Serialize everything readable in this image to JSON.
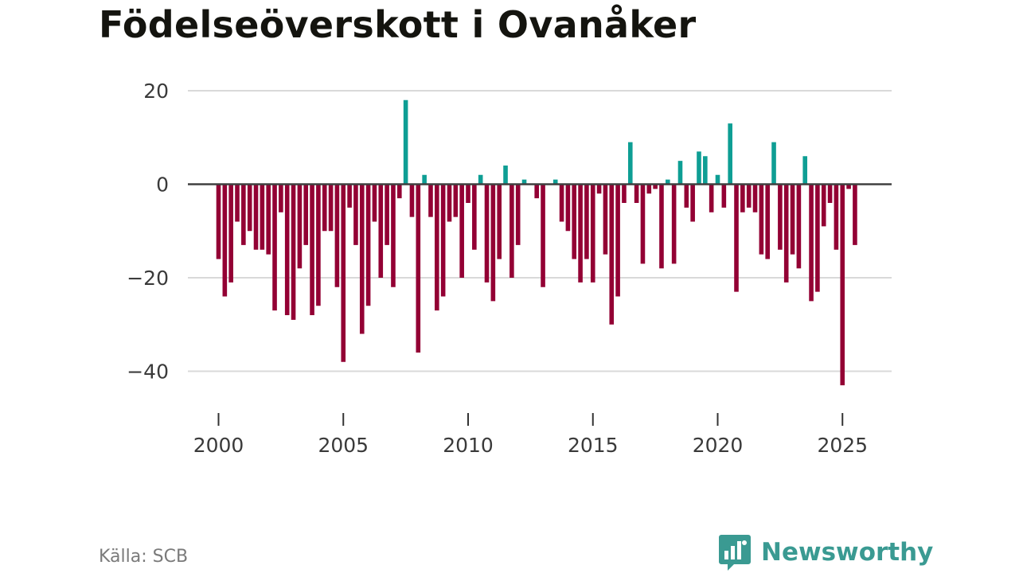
{
  "title": "Födelseöverskott i Ovanåker",
  "source": "Källa: SCB",
  "brand": {
    "name": "Newsworthy",
    "icon": "newsworthy-logo-icon"
  },
  "colors": {
    "positive": "#0e9e94",
    "negative": "#930034",
    "grid": "#d9d9d9",
    "zero": "#404040"
  },
  "chart_data": {
    "type": "bar",
    "title": "Födelseöverskott i Ovanåker",
    "xlabel": "",
    "ylabel": "",
    "x_start": 2000.0,
    "x_step": 0.25,
    "xlim": [
      1999.0,
      2026.5
    ],
    "ylim": [
      -47,
      21
    ],
    "yticks": [
      20,
      0,
      -20,
      -40
    ],
    "ytick_labels": [
      "20",
      "0",
      "−20",
      "−40"
    ],
    "xticks": [
      2000,
      2005,
      2010,
      2015,
      2020,
      2025
    ],
    "xtick_labels": [
      "2000",
      "2005",
      "2010",
      "2015",
      "2020",
      "2025"
    ],
    "values": [
      -16,
      -24,
      -21,
      -8,
      -13,
      -10,
      -14,
      -14,
      -15,
      -27,
      -6,
      -28,
      -29,
      -18,
      -13,
      -28,
      -26,
      -10,
      -10,
      -22,
      -38,
      -5,
      -13,
      -32,
      -26,
      -8,
      -20,
      -13,
      -22,
      -3,
      18,
      -7,
      -36,
      2,
      -7,
      -27,
      -24,
      -8,
      -7,
      -20,
      -4,
      -14,
      2,
      -21,
      -25,
      -16,
      4,
      -20,
      -13,
      1,
      0,
      -3,
      -22,
      0,
      1,
      -8,
      -10,
      -16,
      -21,
      -16,
      -21,
      -2,
      -15,
      -30,
      -24,
      -4,
      9,
      -4,
      -17,
      -2,
      -1,
      -18,
      1,
      -17,
      5,
      -5,
      -8,
      7,
      6,
      -6,
      2,
      -5,
      13,
      -23,
      -6,
      -5,
      -6,
      -15,
      -16,
      9,
      -14,
      -21,
      -15,
      -18,
      6,
      -25,
      -23,
      -9,
      -4,
      -14,
      -43,
      -1,
      -13
    ]
  }
}
